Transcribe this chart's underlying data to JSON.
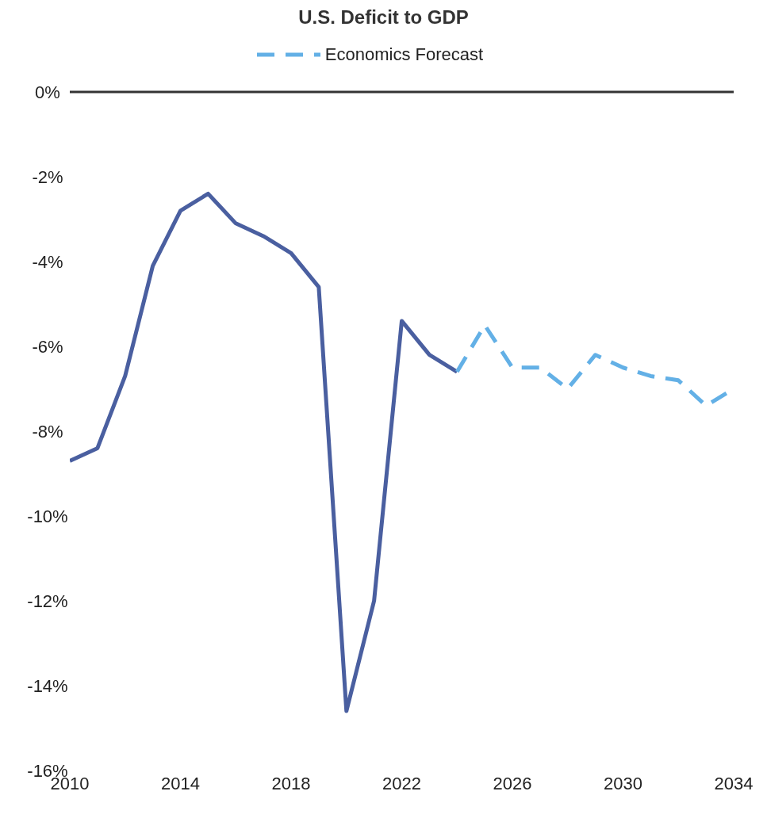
{
  "chart_data": {
    "type": "line",
    "title": "U.S. Deficit to GDP",
    "legend": "top",
    "series": [
      {
        "color": "#4a5fa0",
        "line_style": "solid",
        "x": [
          2010,
          2011,
          2012,
          2013,
          2014,
          2015,
          2016,
          2017,
          2018,
          2019,
          2020,
          2021,
          2022,
          2023,
          2024
        ],
        "values": [
          -8.7,
          -8.4,
          -6.7,
          -4.1,
          -2.8,
          -2.4,
          -3.1,
          -3.4,
          -3.8,
          -4.6,
          -14.6,
          -12.0,
          -5.4,
          -6.2,
          -6.6
        ]
      },
      {
        "name": "Economics Forecast",
        "color": "#63b0e6",
        "line_style": "dashed",
        "x": [
          2024,
          2025,
          2026,
          2027,
          2028,
          2029,
          2030,
          2031,
          2032,
          2033,
          2034
        ],
        "values": [
          -6.6,
          -5.5,
          -6.5,
          -6.5,
          -7.0,
          -6.2,
          -6.5,
          -6.7,
          -6.8,
          -7.4,
          -7.0
        ]
      }
    ],
    "xlim": [
      2010,
      2034
    ],
    "xticks": [
      2010,
      2014,
      2018,
      2022,
      2026,
      2030,
      2034
    ],
    "ylim": [
      -16,
      0
    ],
    "yticks": [
      {
        "value": 0,
        "label": "0%"
      },
      {
        "value": -2,
        "label": "-2%"
      },
      {
        "value": -4,
        "label": "-4%"
      },
      {
        "value": -6,
        "label": "-6%"
      },
      {
        "value": -8,
        "label": "-8%"
      },
      {
        "value": -10,
        "label": "-10%"
      },
      {
        "value": -12,
        "label": "-12%"
      },
      {
        "value": -14,
        "label": "-14%"
      },
      {
        "value": -16,
        "label": "-16%"
      }
    ],
    "ref_lines": [
      {
        "axis": "y",
        "value": 0,
        "color": "#333333"
      }
    ],
    "grid": false,
    "marker": "none"
  }
}
